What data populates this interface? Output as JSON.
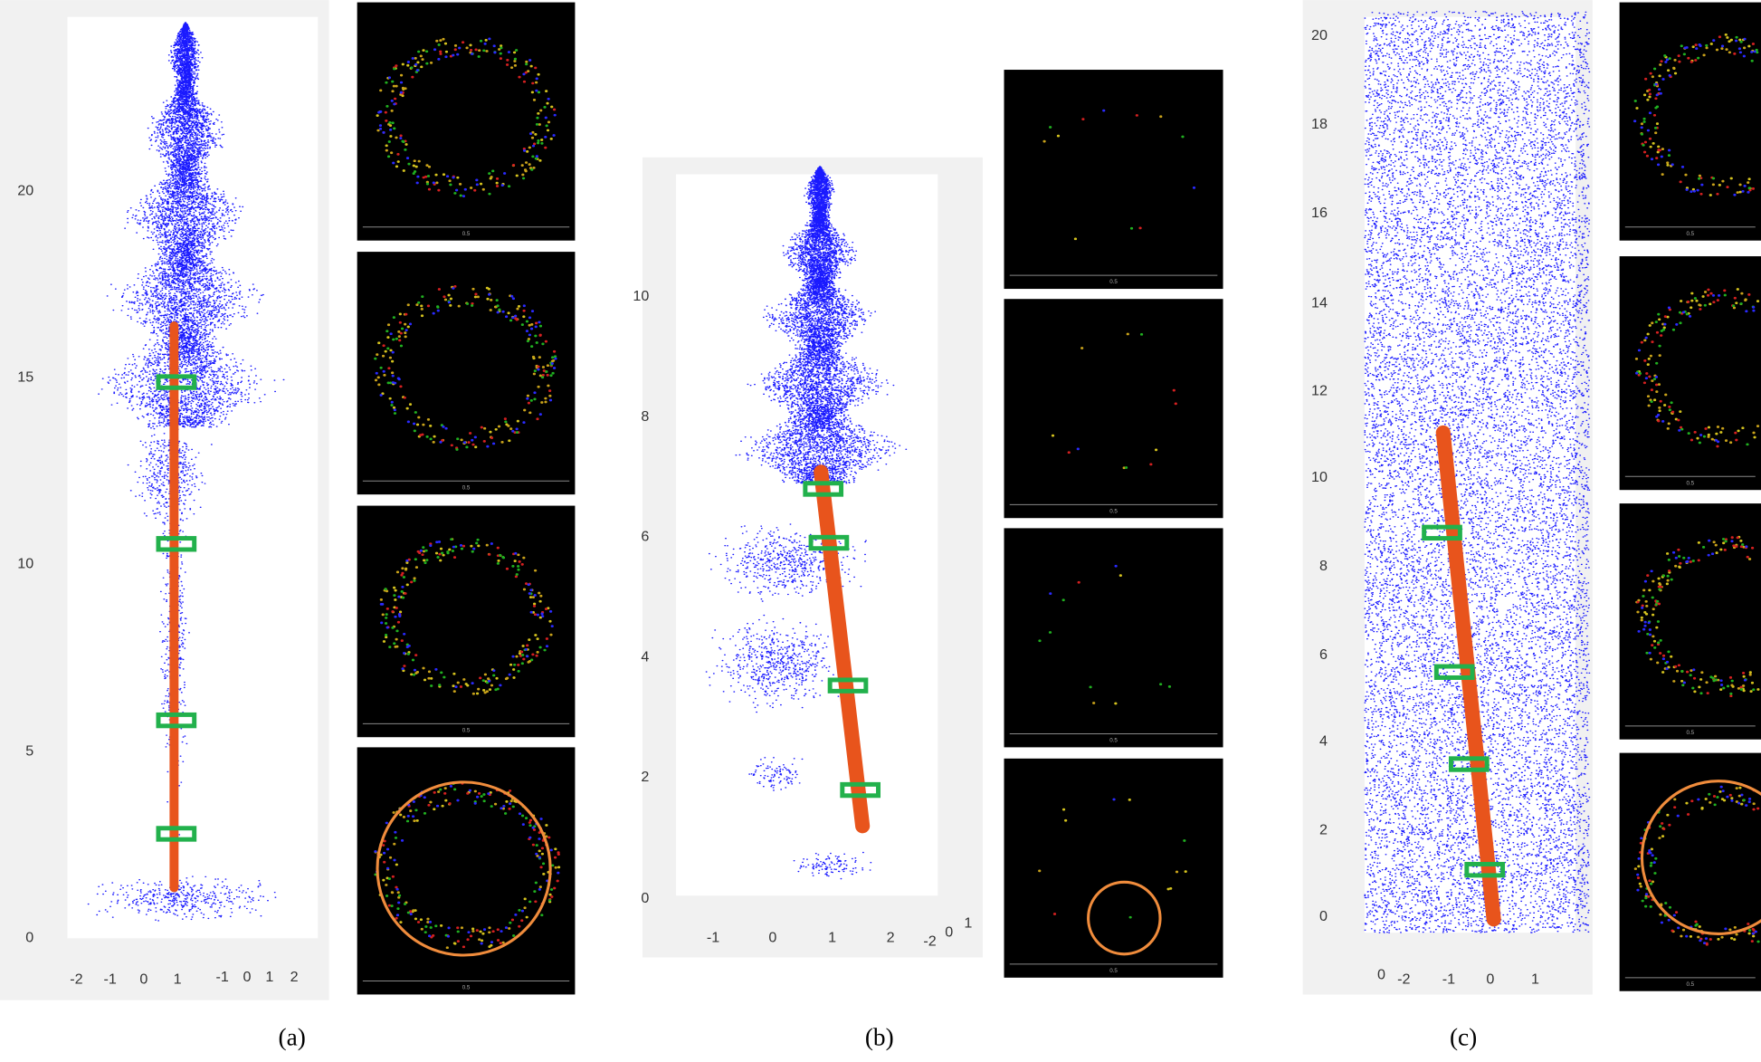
{
  "panels": [
    {
      "label": "(a)",
      "z_ticks": [
        "0",
        "5",
        "10",
        "15",
        "20"
      ],
      "x_ticks": [
        "-2",
        "-1",
        "0",
        "1",
        "-1",
        "0",
        "1",
        "2"
      ],
      "slice_scale": "0.5"
    },
    {
      "label": "(b)",
      "z_ticks": [
        "0",
        "2",
        "4",
        "6",
        "8",
        "10"
      ],
      "x_ticks": [
        "-1",
        "0",
        "1",
        "2",
        "-2",
        "0",
        "1"
      ],
      "slice_scale": "0.5"
    },
    {
      "label": "(c)",
      "z_ticks": [
        "0",
        "2",
        "4",
        "6",
        "8",
        "10",
        "12",
        "14",
        "16",
        "18",
        "20"
      ],
      "x_ticks": [
        "0",
        "-2",
        "-1",
        "0",
        "1"
      ],
      "slice_scale": "0.5"
    }
  ]
}
